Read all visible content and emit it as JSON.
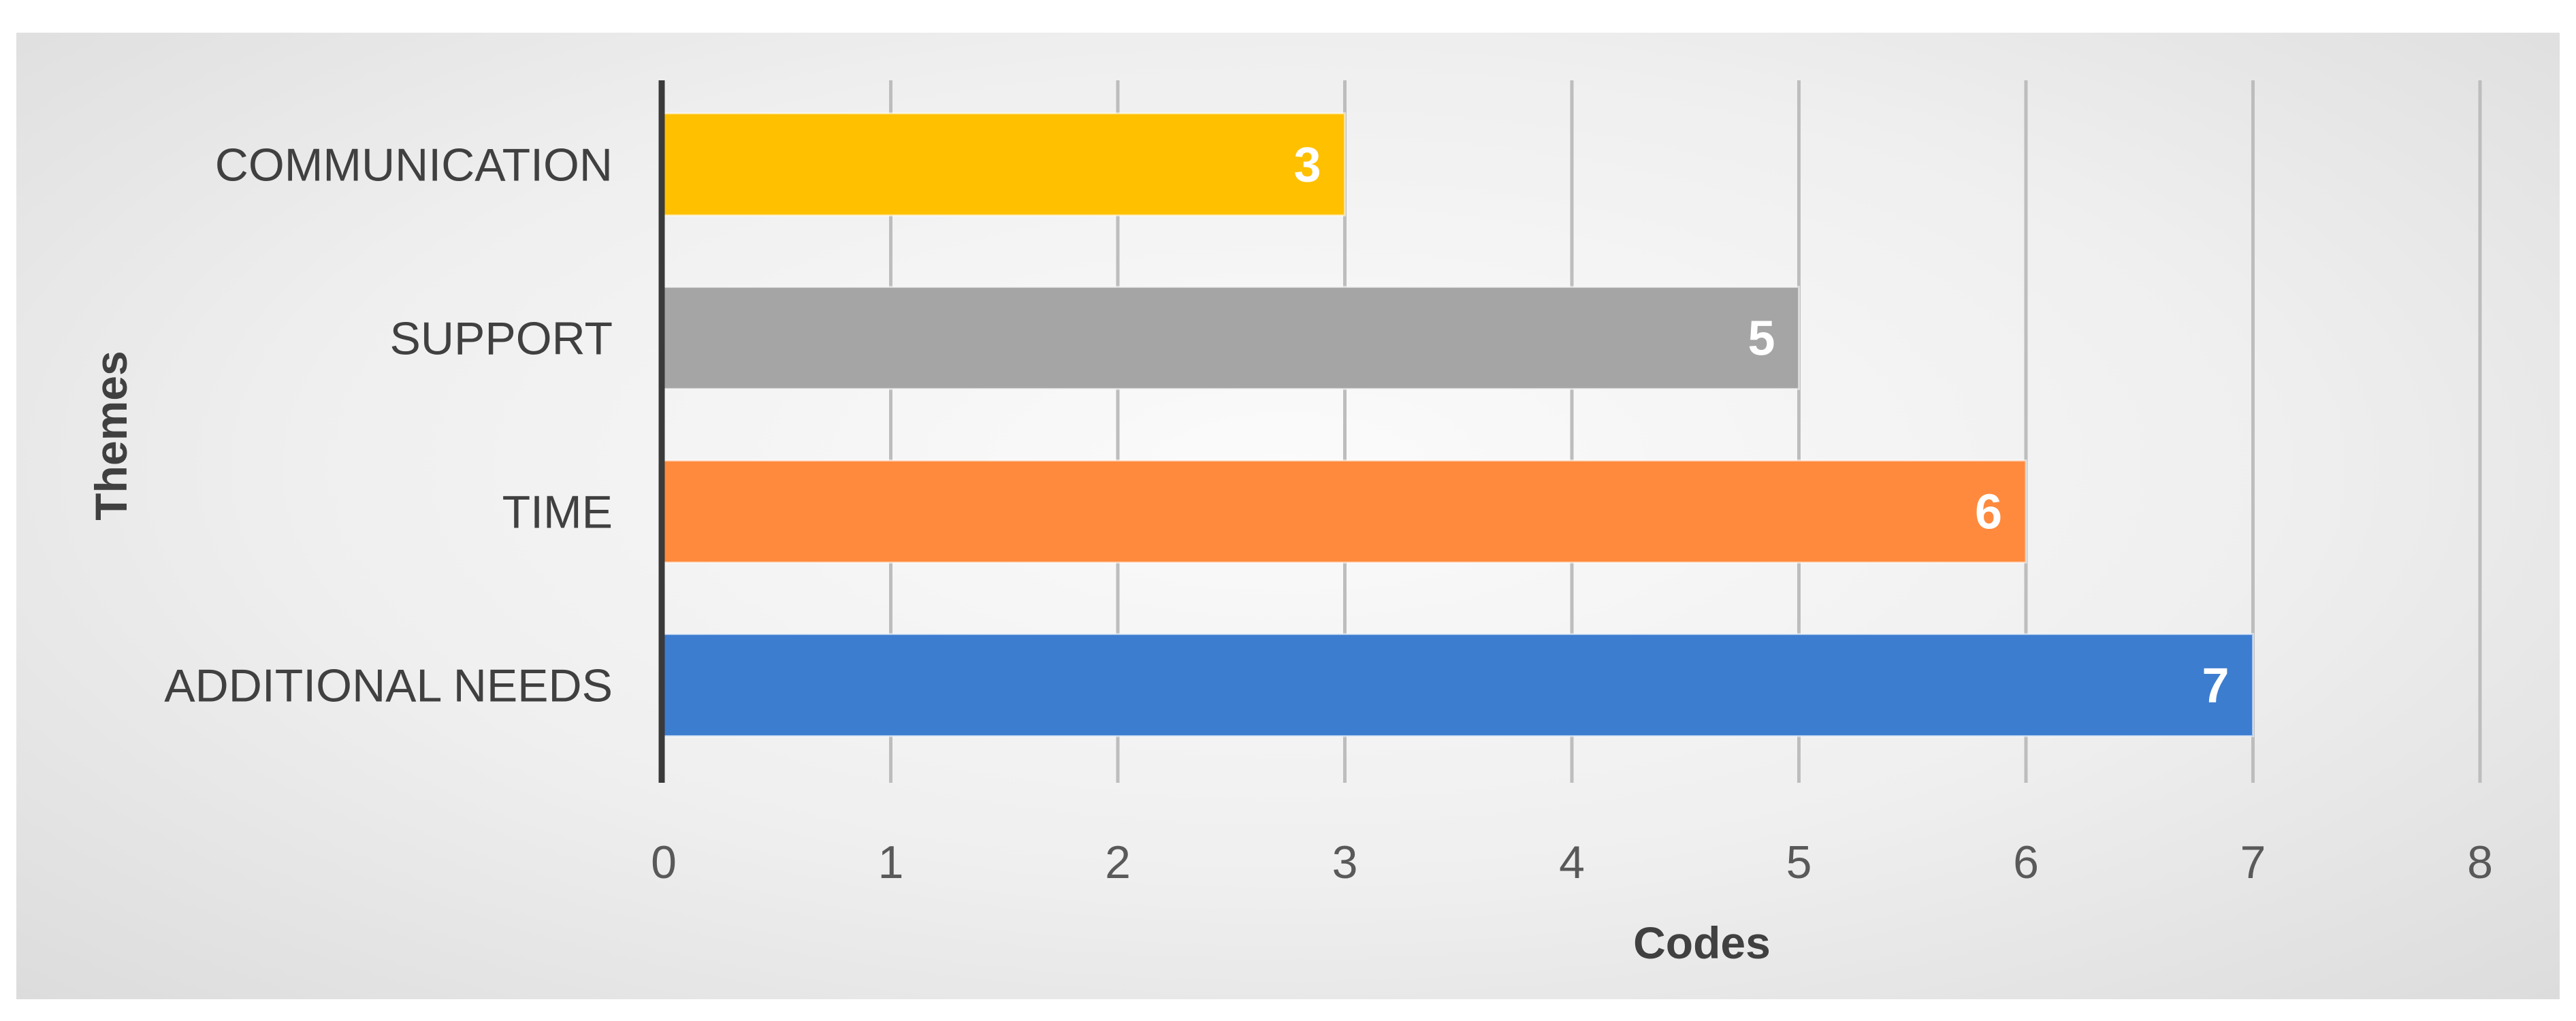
{
  "chart_data": {
    "type": "bar",
    "orientation": "horizontal",
    "categories": [
      "COMMUNICATION",
      "SUPPORT",
      "TIME",
      "ADDITIONAL NEEDS"
    ],
    "values": [
      3,
      5,
      6,
      7
    ],
    "data_labels": [
      "3",
      "5",
      "6",
      "7"
    ],
    "colors": [
      "#FFC000",
      "#A5A5A5",
      "#FF8A3D",
      "#3C7DD0"
    ],
    "xlabel": "Codes",
    "ylabel": "Themes",
    "xlim": [
      0,
      8
    ],
    "xticks": [
      "0",
      "1",
      "2",
      "3",
      "4",
      "5",
      "6",
      "7",
      "8"
    ],
    "grid": "vertical",
    "legend": "none"
  }
}
